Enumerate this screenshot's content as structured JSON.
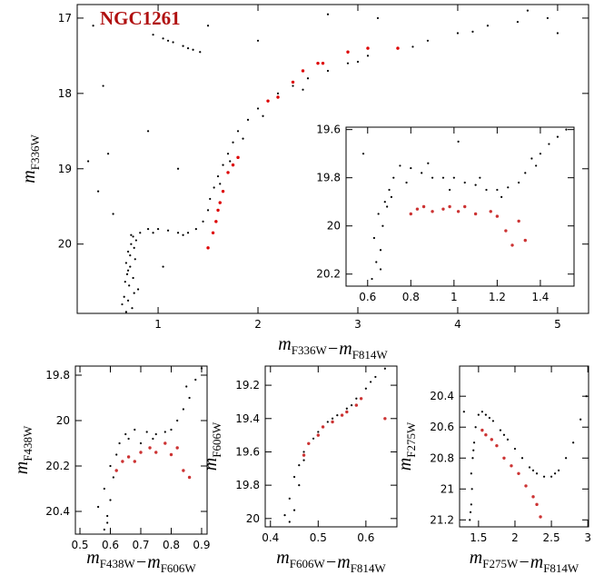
{
  "chart_data": [
    {
      "type": "scatter",
      "annotation": "NGC1261",
      "xlabel": [
        {
          "symbol": "m",
          "sub": "F336W"
        },
        {
          "symbol": "−m",
          "sub": "F814W"
        }
      ],
      "ylabel": [
        {
          "symbol": "m",
          "sub": "F336W"
        }
      ],
      "xlim": [
        0.19,
        5.31
      ],
      "ylim": [
        20.92,
        16.82
      ],
      "xticks": [
        1,
        2,
        3,
        4,
        5
      ],
      "yticks": [
        17,
        18,
        19,
        20
      ],
      "series": [
        {
          "color": "#000000",
          "x": [
            0.68,
            0.74,
            0.7,
            0.66,
            0.76,
            0.71,
            0.67,
            0.75,
            0.7,
            0.72,
            0.68,
            0.77,
            0.72,
            0.7,
            0.76,
            0.73,
            0.78,
            0.75,
            0.82,
            0.9,
            1.0,
            1.1,
            1.2,
            1.3,
            1.38,
            1.45,
            1.5,
            1.52,
            1.56,
            1.6,
            1.65,
            1.7,
            1.75,
            1.8,
            1.9,
            2.0,
            2.1,
            2.2,
            2.35,
            2.5,
            2.7,
            2.9,
            3.1,
            3.4,
            3.7,
            4.0,
            4.3,
            4.6,
            4.9,
            0.64,
            0.8,
            0.69,
            0.73,
            0.95,
            1.25,
            1.62,
            1.72,
            1.85,
            2.05,
            2.45,
            3.0,
            3.55,
            4.15,
            0.95,
            1.05,
            1.15,
            1.25,
            1.35,
            1.42,
            1.1,
            1.3,
            0.35,
            0.5,
            0.4,
            0.9,
            1.2,
            0.3,
            2.7,
            3.2,
            1.5,
            2.0,
            3.5,
            0.55,
            1.05,
            0.45,
            4.7,
            5.0
          ],
          "values": [
            20.9,
            20.85,
            20.75,
            20.7,
            20.65,
            20.55,
            20.5,
            20.45,
            20.35,
            20.3,
            20.25,
            20.2,
            20.15,
            20.1,
            20.05,
            20.0,
            19.95,
            19.9,
            19.85,
            19.8,
            19.8,
            19.82,
            19.85,
            19.85,
            19.8,
            19.7,
            19.55,
            19.4,
            19.25,
            19.1,
            18.95,
            18.8,
            18.65,
            18.5,
            18.35,
            18.2,
            18.1,
            18.0,
            17.9,
            17.8,
            17.7,
            17.6,
            17.5,
            17.4,
            17.3,
            17.2,
            17.1,
            17.05,
            17.0,
            20.8,
            20.6,
            20.4,
            19.88,
            19.85,
            19.88,
            19.2,
            18.9,
            18.6,
            18.3,
            17.95,
            17.58,
            17.38,
            17.18,
            17.22,
            17.27,
            17.32,
            17.37,
            17.42,
            17.45,
            17.3,
            17.4,
            17.1,
            18.8,
            19.3,
            18.5,
            19.0,
            18.9,
            16.95,
            17.0,
            17.1,
            17.3,
            18.5,
            19.6,
            20.3,
            17.9,
            16.9,
            17.2
          ]
        },
        {
          "color": "#dd0000",
          "x": [
            1.5,
            1.55,
            1.58,
            1.6,
            1.62,
            1.65,
            1.7,
            1.75,
            1.8,
            2.1,
            2.2,
            2.35,
            2.45,
            2.6,
            2.65,
            2.9,
            3.1,
            3.4
          ],
          "values": [
            20.05,
            19.85,
            19.7,
            19.55,
            19.45,
            19.3,
            19.05,
            18.95,
            18.85,
            18.1,
            18.05,
            17.85,
            17.7,
            17.6,
            17.6,
            17.45,
            17.4,
            17.4
          ]
        }
      ]
    },
    {
      "type": "scatter",
      "xlim": [
        0.5,
        1.556
      ],
      "ylim": [
        20.25,
        19.59
      ],
      "xticks": [
        0.6,
        0.8,
        1,
        1.2,
        1.4
      ],
      "yticks": [
        19.6,
        19.8,
        20,
        20.2
      ],
      "series": [
        {
          "color": "#000000",
          "x": [
            0.62,
            0.64,
            0.66,
            0.63,
            0.67,
            0.65,
            0.68,
            0.7,
            0.69,
            0.72,
            0.75,
            0.8,
            0.85,
            0.9,
            0.95,
            1.0,
            1.05,
            1.1,
            1.15,
            1.2,
            1.25,
            1.3,
            1.33,
            1.36,
            1.4,
            1.44,
            1.48,
            1.52,
            0.66,
            0.71,
            0.78,
            0.88,
            0.98,
            1.12,
            1.22,
            1.38,
            0.58,
            1.02
          ],
          "values": [
            20.22,
            20.15,
            20.1,
            20.05,
            20.0,
            19.95,
            19.9,
            19.85,
            19.92,
            19.8,
            19.75,
            19.76,
            19.78,
            19.8,
            19.8,
            19.8,
            19.82,
            19.83,
            19.85,
            19.85,
            19.84,
            19.82,
            19.78,
            19.72,
            19.7,
            19.66,
            19.63,
            19.6,
            20.18,
            19.88,
            19.82,
            19.74,
            19.85,
            19.8,
            19.88,
            19.75,
            19.7,
            19.65
          ]
        },
        {
          "color": "#cc3333",
          "x": [
            0.8,
            0.83,
            0.86,
            0.9,
            0.95,
            0.98,
            1.02,
            1.05,
            1.1,
            1.17,
            1.2,
            1.24,
            1.27,
            1.3,
            1.33
          ],
          "values": [
            19.95,
            19.93,
            19.92,
            19.94,
            19.93,
            19.92,
            19.94,
            19.92,
            19.95,
            19.94,
            19.96,
            20.02,
            20.08,
            19.98,
            20.06
          ]
        }
      ]
    },
    {
      "type": "scatter",
      "xlabel": [
        {
          "symbol": "m",
          "sub": "F438W"
        },
        {
          "symbol": "−m",
          "sub": "F606W"
        }
      ],
      "ylabel": [
        {
          "symbol": "m",
          "sub": "F438W"
        }
      ],
      "xlim": [
        0.485,
        0.918
      ],
      "ylim": [
        20.5,
        19.76
      ],
      "xticks": [
        0.5,
        0.6,
        0.7,
        0.8,
        0.9
      ],
      "yticks": [
        19.8,
        20,
        20.2,
        20.4
      ],
      "series": [
        {
          "color": "#000000",
          "x": [
            0.58,
            0.59,
            0.6,
            0.58,
            0.61,
            0.6,
            0.62,
            0.63,
            0.65,
            0.68,
            0.72,
            0.75,
            0.78,
            0.8,
            0.82,
            0.84,
            0.86,
            0.88,
            0.9,
            0.59,
            0.62,
            0.66,
            0.7,
            0.74,
            0.56,
            0.85
          ],
          "values": [
            20.48,
            20.42,
            20.35,
            20.3,
            20.25,
            20.2,
            20.15,
            20.1,
            20.06,
            20.04,
            20.05,
            20.06,
            20.05,
            20.04,
            20.0,
            19.95,
            19.9,
            19.82,
            19.77,
            20.45,
            20.22,
            20.08,
            20.1,
            20.08,
            20.38,
            19.85
          ]
        },
        {
          "color": "#cc3333",
          "x": [
            0.62,
            0.64,
            0.66,
            0.68,
            0.7,
            0.73,
            0.75,
            0.78,
            0.8,
            0.82,
            0.84,
            0.86
          ],
          "values": [
            20.22,
            20.18,
            20.16,
            20.18,
            20.14,
            20.12,
            20.14,
            20.1,
            20.15,
            20.12,
            20.22,
            20.25
          ]
        }
      ]
    },
    {
      "type": "scatter",
      "xlabel": [
        {
          "symbol": "m",
          "sub": "F606W"
        },
        {
          "symbol": "−m",
          "sub": "F814W"
        }
      ],
      "ylabel": [
        {
          "symbol": "m",
          "sub": "F606W"
        }
      ],
      "xlim": [
        0.389,
        0.665
      ],
      "ylim": [
        20.05,
        19.085
      ],
      "xticks": [
        0.4,
        0.5,
        0.6
      ],
      "yticks": [
        19.2,
        19.4,
        19.6,
        19.8,
        20
      ],
      "series": [
        {
          "color": "#000000",
          "x": [
            0.44,
            0.45,
            0.44,
            0.46,
            0.45,
            0.46,
            0.47,
            0.48,
            0.5,
            0.52,
            0.54,
            0.56,
            0.58,
            0.6,
            0.62,
            0.64,
            0.43,
            0.47,
            0.49,
            0.53,
            0.57,
            0.61
          ],
          "values": [
            20.02,
            19.95,
            19.88,
            19.8,
            19.75,
            19.68,
            19.6,
            19.55,
            19.48,
            19.42,
            19.38,
            19.34,
            19.28,
            19.22,
            19.15,
            19.1,
            19.98,
            19.65,
            19.52,
            19.4,
            19.32,
            19.18
          ]
        },
        {
          "color": "#cc3333",
          "x": [
            0.47,
            0.48,
            0.5,
            0.51,
            0.53,
            0.55,
            0.56,
            0.58,
            0.59,
            0.64
          ],
          "values": [
            19.62,
            19.55,
            19.5,
            19.45,
            19.42,
            19.38,
            19.36,
            19.32,
            19.28,
            19.4
          ]
        }
      ]
    },
    {
      "type": "scatter",
      "xlabel": [
        {
          "symbol": "m",
          "sub": "F275W"
        },
        {
          "symbol": "−m",
          "sub": "F814W"
        }
      ],
      "ylabel": [
        {
          "symbol": "m",
          "sub": "F275W"
        }
      ],
      "xlim": [
        1.24,
        3.01
      ],
      "ylim": [
        21.245,
        20.205
      ],
      "xticks": [
        1.5,
        2,
        2.5,
        3
      ],
      "yticks": [
        20.4,
        20.6,
        20.8,
        21,
        21.2
      ],
      "series": [
        {
          "color": "#000000",
          "x": [
            1.38,
            1.4,
            1.41,
            1.4,
            1.42,
            1.44,
            1.46,
            1.5,
            1.55,
            1.6,
            1.7,
            1.8,
            1.9,
            2.0,
            2.1,
            2.2,
            2.3,
            2.4,
            2.5,
            2.6,
            2.7,
            2.8,
            2.9,
            2.98,
            1.39,
            1.43,
            1.65,
            1.85,
            2.25,
            2.55,
            1.3
          ],
          "values": [
            21.2,
            21.1,
            21.0,
            20.9,
            20.8,
            20.7,
            20.6,
            20.52,
            20.5,
            20.52,
            20.56,
            20.62,
            20.68,
            20.74,
            20.8,
            20.86,
            20.9,
            20.92,
            20.92,
            20.88,
            20.8,
            20.7,
            20.55,
            20.4,
            21.15,
            20.75,
            20.54,
            20.65,
            20.88,
            20.9,
            20.5
          ]
        },
        {
          "color": "#cc3333",
          "x": [
            1.55,
            1.6,
            1.68,
            1.75,
            1.85,
            1.95,
            2.05,
            2.15,
            2.25,
            2.3,
            2.35
          ],
          "values": [
            20.62,
            20.65,
            20.68,
            20.72,
            20.8,
            20.85,
            20.9,
            20.98,
            21.05,
            21.1,
            21.18
          ]
        }
      ]
    }
  ]
}
